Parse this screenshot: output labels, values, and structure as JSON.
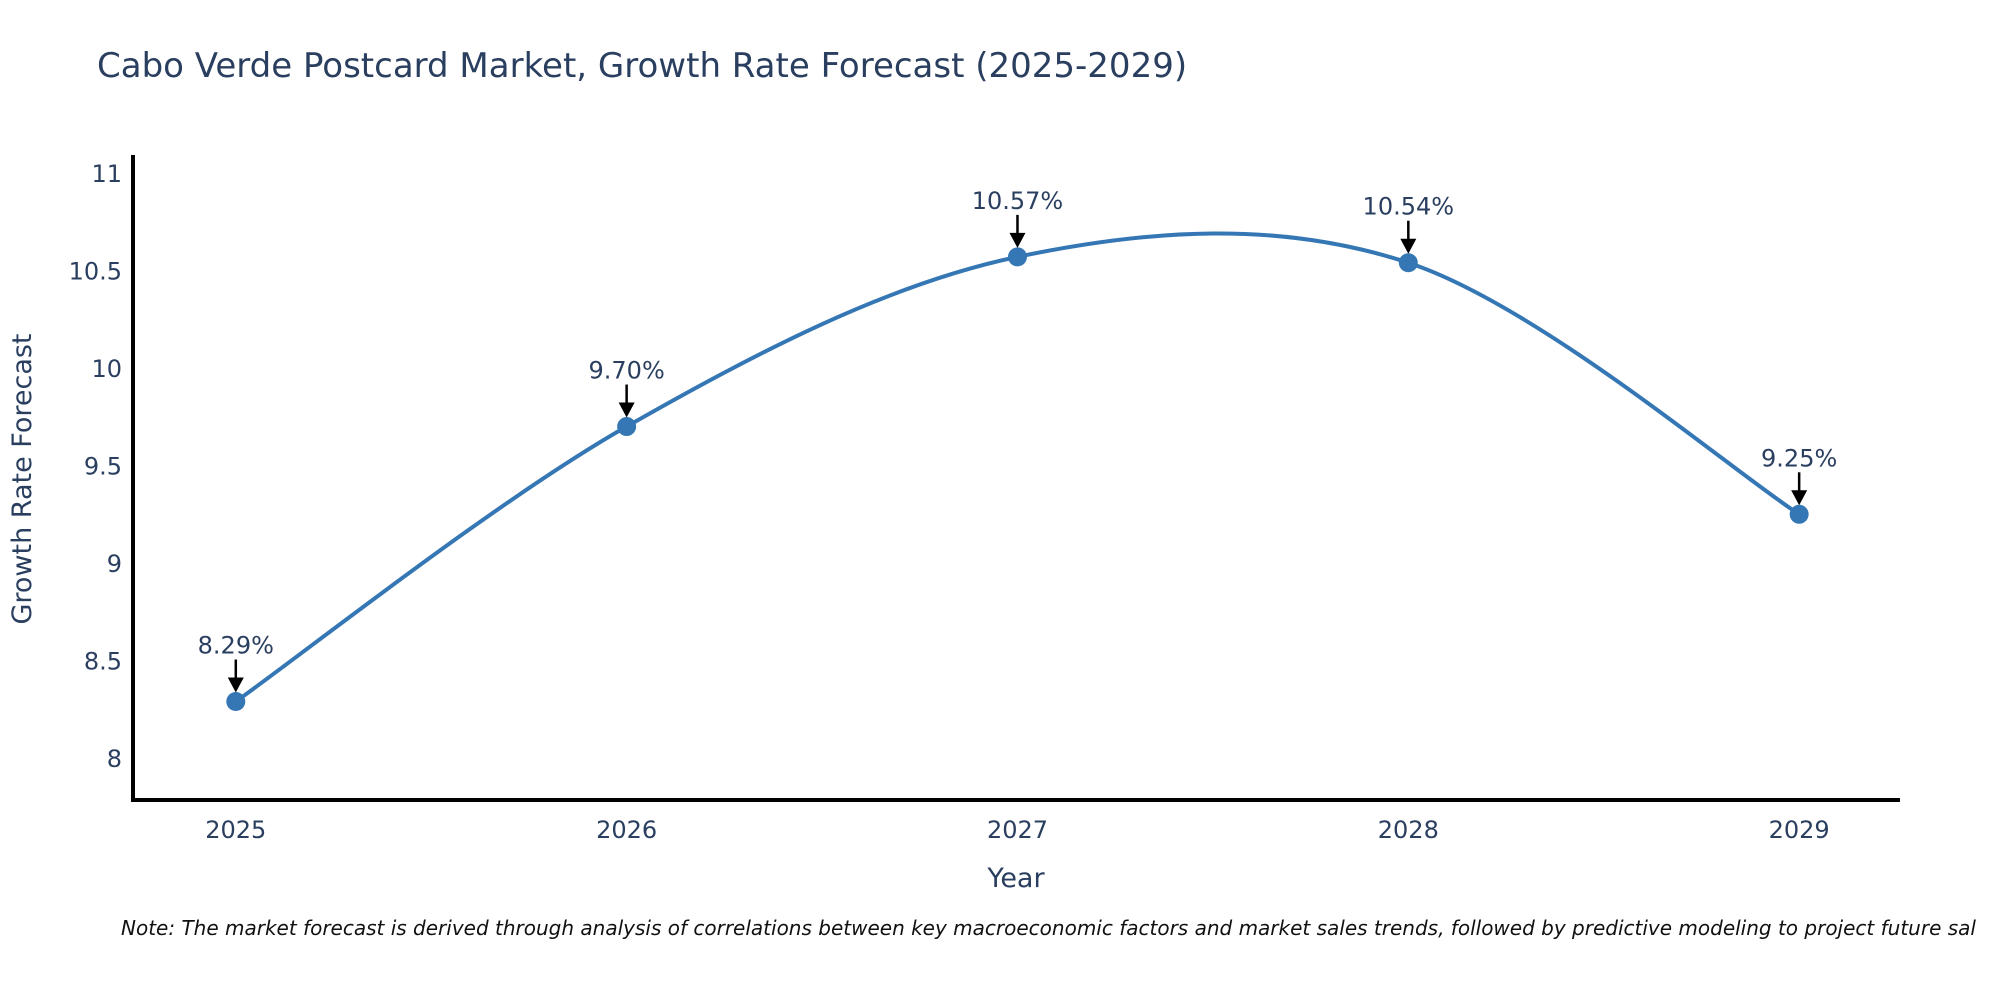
{
  "page": {
    "title": "Cabo Verde Postcard Market, Growth Rate Forecast (2025-2029)",
    "note": "Note: The market forecast is derived through analysis of correlations between key macroeconomic factors and market sales trends, followed by predictive modeling to project future sal"
  },
  "chart_data": {
    "type": "line",
    "title": "Cabo Verde Postcard Market, Growth Rate Forecast (2025-2029)",
    "xlabel": "Year",
    "ylabel": "Growth Rate Forecast",
    "x": [
      2025,
      2026,
      2027,
      2028,
      2029
    ],
    "series": [
      {
        "name": "Growth Rate Forecast",
        "values": [
          8.29,
          9.7,
          10.57,
          10.54,
          9.25
        ]
      }
    ],
    "point_labels": [
      "8.29%",
      "9.70%",
      "10.57%",
      "10.54%",
      "9.25%"
    ],
    "xticks": [
      "2025",
      "2026",
      "2027",
      "2028",
      "2029"
    ],
    "xtick_values": [
      2025,
      2026,
      2027,
      2028,
      2029
    ],
    "yticks": [
      "8",
      "8.5",
      "9",
      "9.5",
      "10",
      "10.5",
      "11"
    ],
    "ytick_values": [
      8,
      8.5,
      9,
      9.5,
      10,
      10.5,
      11
    ],
    "xlim": [
      2024.737,
      2029.258
    ],
    "ylim": [
      7.785,
      11.077
    ],
    "line_shape": "spline",
    "grid": false,
    "legend_position": "none",
    "colors": {
      "line": "#3577b4",
      "marker": "#3577b4",
      "axis": "#000000",
      "text": "#2a3f5f",
      "arrow": "#000000",
      "note_text": "#111111",
      "background": "#ffffff"
    }
  }
}
